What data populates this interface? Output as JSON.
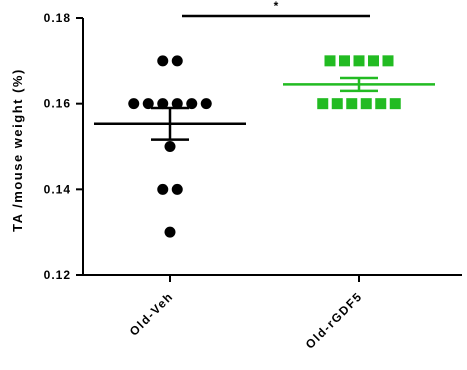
{
  "chart_data": {
    "type": "scatter",
    "subtype": "dot-plot-mean-sem",
    "ylabel": "TA /mouse weight (%)",
    "xlabel": "",
    "ylim": [
      0.12,
      0.18
    ],
    "yticks": [
      0.12,
      0.14,
      0.16,
      0.18
    ],
    "ytick_labels": [
      "0.12",
      "0.14",
      "0.16",
      "0.18"
    ],
    "categories": [
      "Old-Veh",
      "Old-rGDF5"
    ],
    "grid": false,
    "legend": "none",
    "series": [
      {
        "category": "Old-Veh",
        "marker": "circle",
        "color": "#000000",
        "values": [
          0.17,
          0.17,
          0.16,
          0.16,
          0.16,
          0.16,
          0.16,
          0.16,
          0.15,
          0.14,
          0.14,
          0.13
        ],
        "mean": 0.1553,
        "sem_low": 0.1516,
        "sem_high": 0.159
      },
      {
        "category": "Old-rGDF5",
        "marker": "square",
        "color": "#22bb22",
        "values": [
          0.17,
          0.17,
          0.17,
          0.17,
          0.17,
          0.16,
          0.16,
          0.16,
          0.16,
          0.16,
          0.16
        ],
        "mean": 0.1645,
        "sem_low": 0.163,
        "sem_high": 0.166
      }
    ],
    "significance": {
      "between": [
        "Old-Veh",
        "Old-rGDF5"
      ],
      "label": "*"
    }
  }
}
